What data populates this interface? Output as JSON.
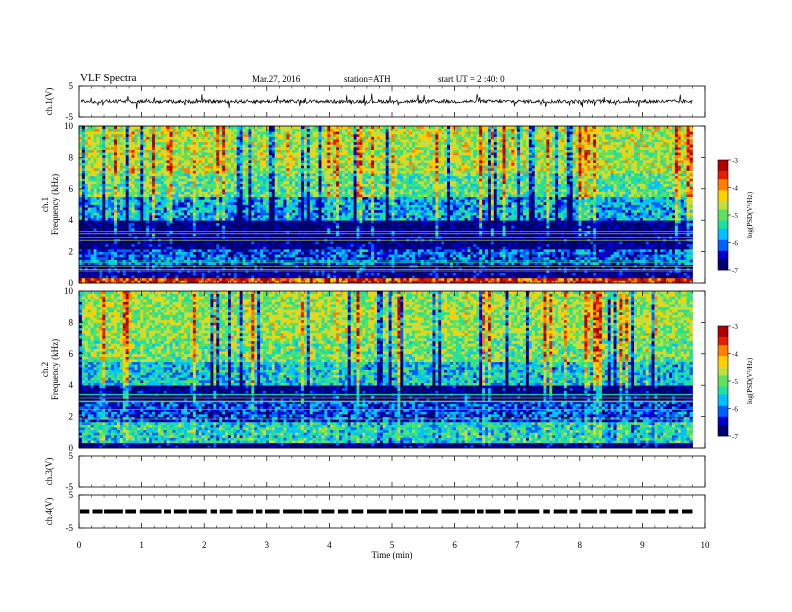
{
  "header": {
    "title": "VLF  Spectra",
    "date": "Mar.27, 2016",
    "station": "station=ATH",
    "start": "start  UT  =   2  :40: 0"
  },
  "colorbar": {
    "label": "log(PSD(V²/Hz)",
    "ticks": [
      "-3",
      "-4",
      "-5",
      "-6",
      "-7"
    ],
    "colors": [
      "#000070",
      "#0000d0",
      "#0060ff",
      "#00c0ff",
      "#20e0a0",
      "#60e060",
      "#c0e040",
      "#ffd000",
      "#ff8000",
      "#e02000",
      "#b00000"
    ]
  },
  "chart_data": [
    {
      "type": "line",
      "panel": "ch1-waveform",
      "ylabel": "ch.1(V)",
      "yticks": [
        "5",
        "-5"
      ],
      "ylim": [
        -5,
        5
      ],
      "mean_level": 0.0,
      "color": "#000000"
    },
    {
      "type": "heatmap",
      "panel": "ch1-spectrogram",
      "ylabel": "ch.1 Frequency  (kHz)",
      "yticks": [
        "0",
        "2",
        "4",
        "6",
        "8",
        "10"
      ],
      "ylim": [
        0,
        10
      ],
      "zlim": [
        -7,
        -3
      ],
      "bands": [
        {
          "f": [
            0.0,
            0.3
          ],
          "level": -3.6
        },
        {
          "f": [
            0.3,
            1.2
          ],
          "level": -6.8
        },
        {
          "f": [
            1.2,
            2.2
          ],
          "level": -6.2
        },
        {
          "f": [
            2.2,
            3.0
          ],
          "level": -6.9
        },
        {
          "f": [
            3.0,
            4.0
          ],
          "level": -7.0
        },
        {
          "f": [
            4.0,
            5.5
          ],
          "level": -5.8
        },
        {
          "f": [
            5.5,
            7.0
          ],
          "level": -5.1
        },
        {
          "f": [
            7.0,
            10.0
          ],
          "level": -4.7
        }
      ]
    },
    {
      "type": "heatmap",
      "panel": "ch2-spectrogram",
      "ylabel": "ch.2 Frequency  (kHz)",
      "yticks": [
        "0",
        "2",
        "4",
        "6",
        "8",
        "10"
      ],
      "ylim": [
        0,
        10
      ],
      "zlim": [
        -7,
        -3
      ],
      "bands": [
        {
          "f": [
            0.0,
            0.4
          ],
          "level": -6.9
        },
        {
          "f": [
            0.4,
            1.6
          ],
          "level": -5.4
        },
        {
          "f": [
            1.6,
            3.0
          ],
          "level": -6.2
        },
        {
          "f": [
            3.0,
            4.0
          ],
          "level": -6.9
        },
        {
          "f": [
            4.0,
            5.5
          ],
          "level": -5.6
        },
        {
          "f": [
            5.5,
            7.0
          ],
          "level": -5.0
        },
        {
          "f": [
            7.0,
            10.0
          ],
          "level": -4.8
        }
      ]
    },
    {
      "type": "line",
      "panel": "ch3-waveform",
      "ylabel": "ch.3(V)",
      "yticks": [
        "5",
        "-5"
      ],
      "ylim": [
        -5,
        5
      ]
    },
    {
      "type": "line",
      "panel": "ch4-waveform",
      "ylabel": "ch.4(V)",
      "yticks": [
        "5",
        "-5"
      ],
      "ylim": [
        -5,
        5
      ],
      "mean_level": 0.0
    }
  ],
  "xaxis": {
    "label": "Time  (min)",
    "ticks": [
      "0",
      "1",
      "2",
      "3",
      "4",
      "5",
      "6",
      "7",
      "8",
      "9",
      "10"
    ],
    "xlim": [
      0,
      10
    ],
    "data_end": 9.8
  }
}
